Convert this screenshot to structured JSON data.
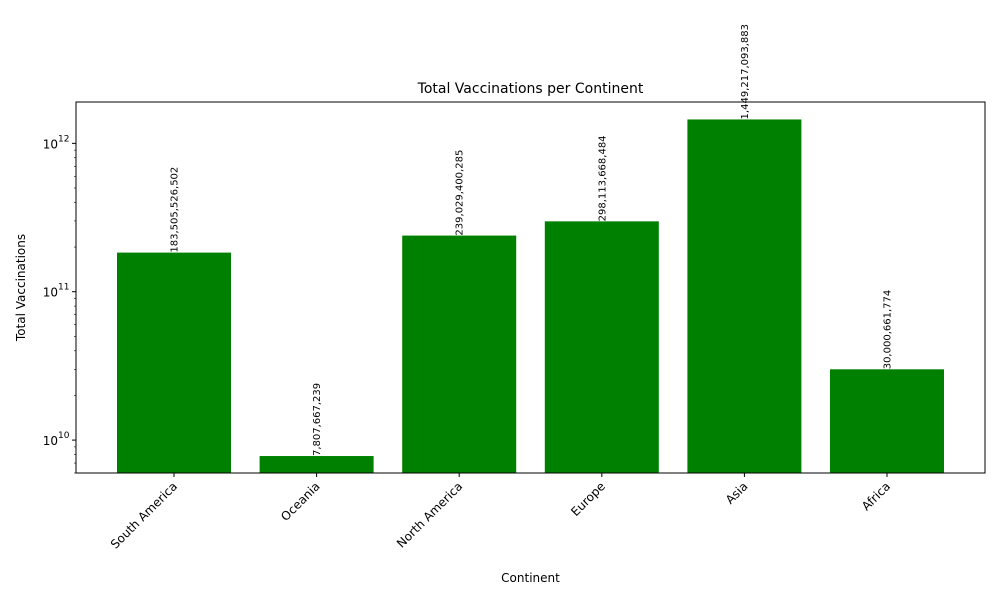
{
  "chart_data": {
    "type": "bar",
    "title": "Total Vaccinations per Continent",
    "xlabel": "Continent",
    "ylabel": "Total Vaccinations",
    "yscale": "log",
    "ylim": [
      6000000000,
      1900000000000
    ],
    "categories": [
      "South America",
      "Oceania",
      "North America",
      "Europe",
      "Asia",
      "Africa"
    ],
    "values": [
      183505526502,
      7807667239,
      239029400285,
      298113668484,
      1449217093883,
      30000661774
    ],
    "data_labels": [
      "183,505,526,502",
      "7,807,667,239",
      "239,029,400,285",
      "298,113,668,484",
      "1,449,217,093,883",
      "30,000,661,774"
    ],
    "y_ticks": [
      {
        "value": 10000000000,
        "base": "10",
        "exp": "10"
      },
      {
        "value": 100000000000,
        "base": "10",
        "exp": "11"
      },
      {
        "value": 1000000000000,
        "base": "10",
        "exp": "12"
      }
    ],
    "bar_color": "#008000",
    "grid": false,
    "legend": "none"
  }
}
